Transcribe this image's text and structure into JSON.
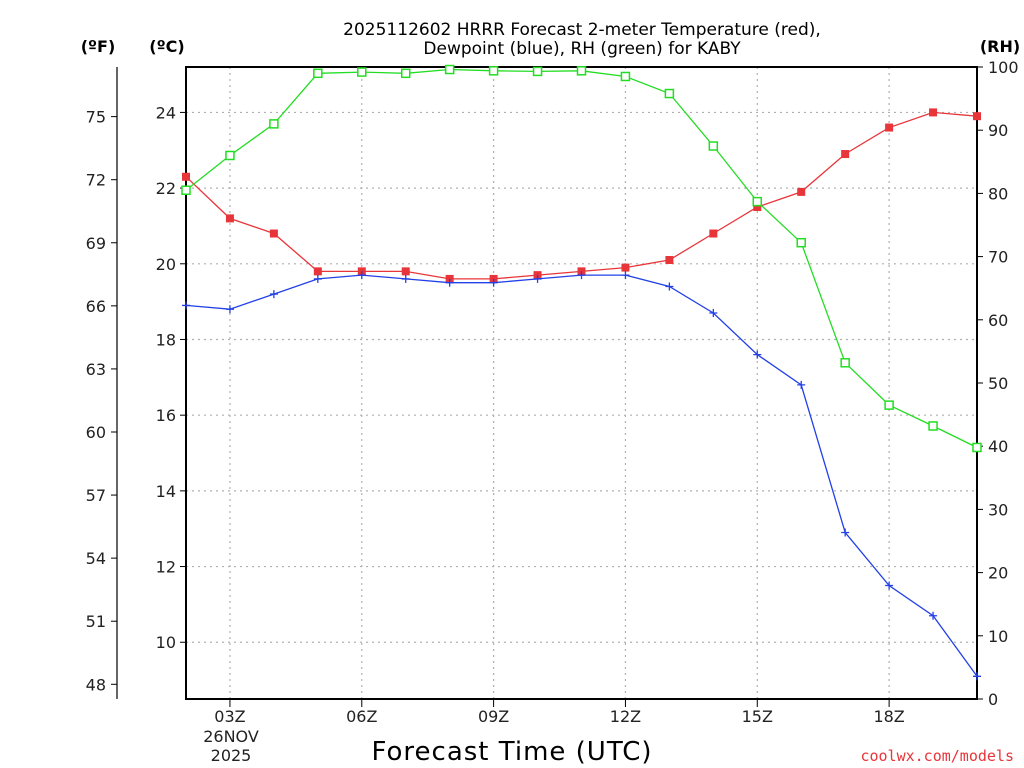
{
  "chart_data": {
    "type": "line",
    "title_line1": "2025112602 HRRR Forecast 2-meter Temperature (red),",
    "title_line2": "Dewpoint (blue), RH (green) for KABY",
    "xlabel": "Forecast Time (UTC)",
    "units": {
      "fahrenheit": "(ºF)",
      "celsius": "(ºC)",
      "rh": "(RH)"
    },
    "x_hours": [
      2,
      3,
      4,
      5,
      6,
      7,
      8,
      9,
      10,
      11,
      12,
      13,
      14,
      15,
      16,
      17,
      18,
      19,
      20
    ],
    "x_ticks": [
      {
        "hour": 3,
        "label": "03Z"
      },
      {
        "hour": 6,
        "label": "06Z"
      },
      {
        "hour": 9,
        "label": "09Z"
      },
      {
        "hour": 12,
        "label": "12Z"
      },
      {
        "hour": 15,
        "label": "15Z"
      },
      {
        "hour": 18,
        "label": "18Z"
      }
    ],
    "date_label_line1": "26NOV",
    "date_label_line2": "2025",
    "xlim": [
      2,
      20
    ],
    "celsius_ylim": [
      8.5,
      25.2
    ],
    "celsius_ticks": [
      10,
      12,
      14,
      16,
      18,
      20,
      22,
      24
    ],
    "fahrenheit_ticks": [
      48,
      51,
      54,
      57,
      60,
      63,
      66,
      69,
      72,
      75
    ],
    "rh_ylim": [
      0,
      100
    ],
    "rh_ticks": [
      0,
      10,
      20,
      30,
      40,
      50,
      60,
      70,
      80,
      90,
      100
    ],
    "series": [
      {
        "name": "Temperature",
        "axis": "celsius",
        "color": "#e8353a",
        "marker": "filled-square",
        "values": [
          22.3,
          21.2,
          20.8,
          19.8,
          19.8,
          19.8,
          19.6,
          19.6,
          19.7,
          19.8,
          19.9,
          20.1,
          20.8,
          21.5,
          21.9,
          22.9,
          23.6,
          24.0,
          23.9
        ]
      },
      {
        "name": "Dewpoint",
        "axis": "celsius",
        "color": "#2240e6",
        "marker": "plus",
        "values": [
          18.9,
          18.8,
          19.2,
          19.6,
          19.7,
          19.6,
          19.5,
          19.5,
          19.6,
          19.7,
          19.7,
          19.4,
          18.7,
          17.6,
          16.8,
          12.9,
          11.5,
          10.7,
          9.1
        ]
      },
      {
        "name": "Relative Humidity",
        "axis": "rh",
        "color": "#22dd22",
        "marker": "open-square",
        "values": [
          80.5,
          86,
          91,
          99,
          99.2,
          99,
          99.6,
          99.4,
          99.3,
          99.4,
          98.5,
          95.8,
          87.5,
          78.7,
          72.2,
          53.2,
          46.5,
          43.2,
          39.8
        ]
      }
    ],
    "credit": "coolwx.com/models",
    "colors": {
      "grid": "#b0b0b0",
      "axis": "#000000",
      "credit": "#e8353a"
    }
  }
}
